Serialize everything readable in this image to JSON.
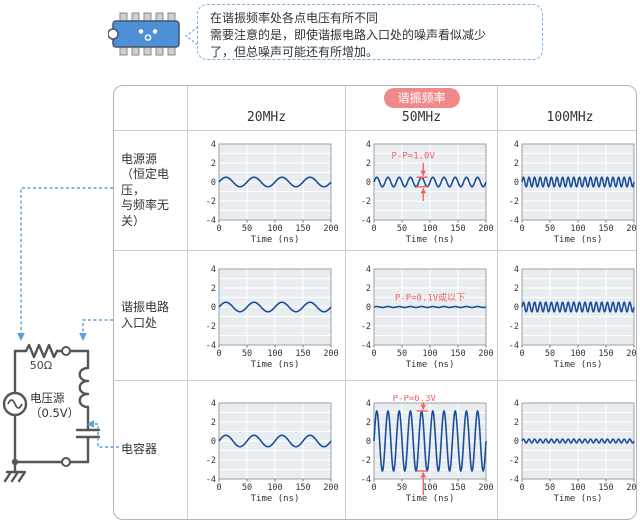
{
  "bubble": {
    "line1": "在谐振频率处各点电压有所不同",
    "line2": "需要注意的是，即使谐振电路入口处的噪声看似减少",
    "line3": "了，但总噪声可能还有所增加。"
  },
  "table": {
    "resonance_badge": "谐振频率",
    "col_headers": [
      "20MHz",
      "50MHz",
      "100MHz"
    ],
    "row_labels": [
      {
        "l1": "电源源",
        "l2": "（恒定电压，",
        "l3": "与频率无关）"
      },
      {
        "l1": "谐振电路",
        "l2": "入口处",
        "l3": ""
      },
      {
        "l1": "电容器",
        "l2": "",
        "l3": ""
      }
    ]
  },
  "circuit": {
    "resistor_label": "50Ω",
    "source_label_line1": "电压源",
    "source_label_line2": "（0.5V）"
  },
  "chart_common": {
    "type": "line",
    "xlabel": "Time (ns)",
    "xlim": [
      0,
      200
    ],
    "ylim": [
      -4,
      4
    ],
    "x_ticks": [
      0,
      50,
      100,
      150,
      200
    ],
    "y_ticks": [
      4,
      2,
      0,
      -2,
      -4
    ],
    "grid": true
  },
  "chart_data": [
    {
      "row": "电源源",
      "column": "20MHz",
      "amplitude_v": 0.5,
      "cycles": 4,
      "peak_to_peak_v": 1.0,
      "annotation": null
    },
    {
      "row": "电源源",
      "column": "50MHz",
      "amplitude_v": 0.5,
      "cycles": 10,
      "peak_to_peak_v": 1.0,
      "annotation": {
        "text": "P-P=1.0V",
        "arrows": true,
        "placement": "inside"
      }
    },
    {
      "row": "电源源",
      "column": "100MHz",
      "amplitude_v": 0.5,
      "cycles": 20,
      "peak_to_peak_v": 1.0,
      "annotation": null
    },
    {
      "row": "谐振电路入口处",
      "column": "20MHz",
      "amplitude_v": 0.5,
      "cycles": 4,
      "peak_to_peak_v": 1.0,
      "annotation": null
    },
    {
      "row": "谐振电路入口处",
      "column": "50MHz",
      "amplitude_v": 0.05,
      "cycles": 10,
      "peak_to_peak_v": 0.1,
      "annotation": {
        "text": "P-P=0.1V或以下",
        "arrows": false,
        "placement": "inside"
      }
    },
    {
      "row": "谐振电路入口处",
      "column": "100MHz",
      "amplitude_v": 0.5,
      "cycles": 20,
      "peak_to_peak_v": 1.0,
      "annotation": null
    },
    {
      "row": "电容器",
      "column": "20MHz",
      "amplitude_v": 0.6,
      "cycles": 4,
      "peak_to_peak_v": 1.2,
      "annotation": null
    },
    {
      "row": "电容器",
      "column": "50MHz",
      "amplitude_v": 3.15,
      "cycles": 10,
      "peak_to_peak_v": 6.3,
      "annotation": {
        "text": "P-P=6.3V",
        "arrows": true,
        "placement": "above"
      }
    },
    {
      "row": "电容器",
      "column": "100MHz",
      "amplitude_v": 0.2,
      "cycles": 20,
      "peak_to_peak_v": 0.4,
      "annotation": null
    }
  ],
  "colors": {
    "wave": "#1b4e9b",
    "annotation": "#f25f5f",
    "badge_bg": "#f08a8a",
    "plot_bg": "#e9edf0",
    "dashed_connector": "#58a0e0",
    "circuit_line": "#555555"
  }
}
